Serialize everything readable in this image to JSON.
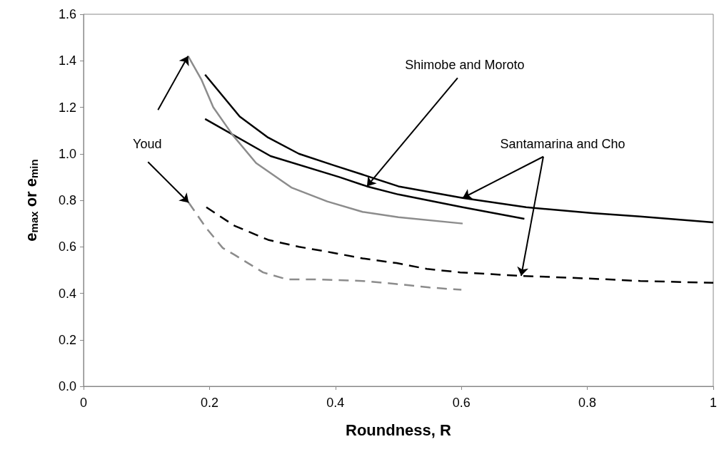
{
  "chart_data": {
    "type": "line",
    "xlabel": "Roundness, R",
    "ylabel": "e$_{max}$ or e$_{min}$",
    "xlim": [
      0,
      1
    ],
    "xticks": [
      0,
      0.2,
      0.4,
      0.6,
      0.8,
      1
    ],
    "ylim": [
      0,
      1.6
    ],
    "yticks": [
      {
        "value": 0,
        "label": "0.0"
      },
      {
        "value": 0.2,
        "label": "0.2"
      },
      {
        "value": 0.4,
        "label": "0.4"
      },
      {
        "value": 0.6,
        "label": "0.6"
      },
      {
        "value": 0.8,
        "label": "0.8"
      },
      {
        "value": 1,
        "label": "1.0"
      },
      {
        "value": 1.2,
        "label": "1.2"
      },
      {
        "value": 1.4,
        "label": "1.4"
      },
      {
        "value": 1.6,
        "label": "1.6"
      }
    ],
    "grid": false,
    "series": [
      {
        "color": "#000000",
        "line_style": "solid",
        "x": [
          0.193,
          0.248,
          0.293,
          0.342,
          0.398,
          0.455,
          0.5,
          0.602,
          0.703,
          0.808,
          0.884,
          1.0
        ],
        "values": [
          1.34,
          1.16,
          1.07,
          1.0,
          0.95,
          0.9,
          0.86,
          0.81,
          0.77,
          0.745,
          0.73,
          0.705
        ]
      },
      {
        "color": "#000000",
        "line_style": "solid",
        "x": [
          0.193,
          0.297,
          0.406,
          0.45,
          0.5,
          0.602,
          0.7
        ],
        "values": [
          1.15,
          0.99,
          0.9,
          0.86,
          0.825,
          0.77,
          0.72
        ]
      },
      {
        "color": "#8c8c8c",
        "line_style": "solid",
        "x": [
          0.166,
          0.187,
          0.206,
          0.237,
          0.274,
          0.33,
          0.387,
          0.443,
          0.5,
          0.602
        ],
        "values": [
          1.42,
          1.32,
          1.2,
          1.08,
          0.96,
          0.855,
          0.795,
          0.75,
          0.727,
          0.7
        ]
      },
      {
        "color": "#000000",
        "line_style": "dashed",
        "x": [
          0.195,
          0.24,
          0.293,
          0.342,
          0.395,
          0.443,
          0.497,
          0.545,
          0.598,
          0.695,
          0.808,
          0.884,
          1.0
        ],
        "values": [
          0.77,
          0.69,
          0.63,
          0.6,
          0.575,
          0.55,
          0.53,
          0.505,
          0.49,
          0.475,
          0.463,
          0.453,
          0.445
        ]
      },
      {
        "color": "#8c8c8c",
        "line_style": "dashed",
        "x": [
          0.167,
          0.195,
          0.221,
          0.24,
          0.285,
          0.323,
          0.368,
          0.443,
          0.497,
          0.549,
          0.6
        ],
        "values": [
          0.79,
          0.68,
          0.595,
          0.565,
          0.49,
          0.46,
          0.46,
          0.453,
          0.44,
          0.425,
          0.415
        ]
      }
    ],
    "annotations": [
      {
        "text": "Youd",
        "x": 0.167,
        "y": 0.79
      },
      {
        "text": "Shimobe and Moroto",
        "x": 0.45,
        "y": 0.86
      },
      {
        "text": "Santamarina and Cho",
        "x": 0.602,
        "y": 0.81
      }
    ]
  }
}
